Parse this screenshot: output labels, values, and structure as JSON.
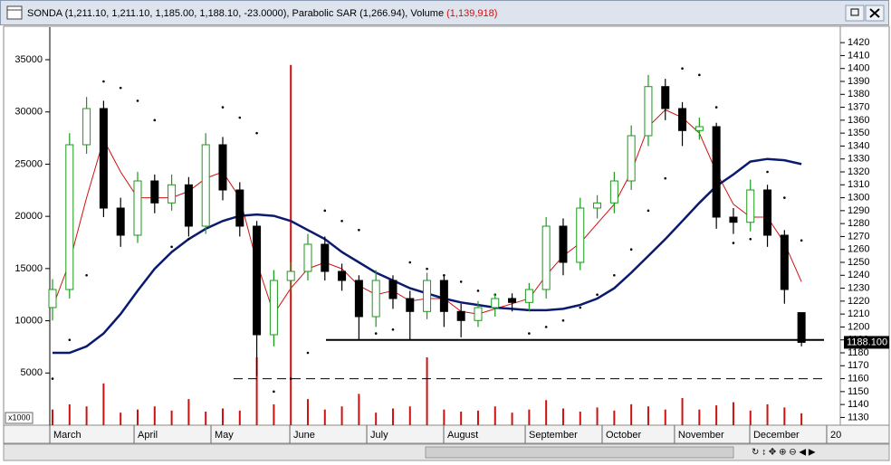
{
  "chart_data": {
    "type": "candlestick",
    "title": "SONDA (1,211.10, 1,211.10, 1,185.00, 1,188.10, -23.0000), Parabolic SAR (1,266.94), Volume",
    "title_volume": "(1,139,918)",
    "volume_unit_label": "x1000",
    "last_price_label": "1188.100",
    "xlim": [
      -0.16,
      46.28
    ],
    "xticks": [
      {
        "value": -0.16,
        "label": "March"
      },
      {
        "value": 4.79,
        "label": "April"
      },
      {
        "value": 9.31,
        "label": "May"
      },
      {
        "value": 13.94,
        "label": "June"
      },
      {
        "value": 18.46,
        "label": "July"
      },
      {
        "value": 22.98,
        "label": "August"
      },
      {
        "value": 27.77,
        "label": "September"
      },
      {
        "value": 32.29,
        "label": "October"
      },
      {
        "value": 36.54,
        "label": "November"
      },
      {
        "value": 40.96,
        "label": "December"
      },
      {
        "value": 45.48,
        "label": "20"
      }
    ],
    "ylim": [
      1124,
      1432
    ],
    "yticks": [
      1130,
      1140,
      1150,
      1160,
      1170,
      1180,
      1190,
      1200,
      1210,
      1220,
      1230,
      1240,
      1250,
      1260,
      1270,
      1280,
      1290,
      1300,
      1310,
      1320,
      1330,
      1340,
      1350,
      1360,
      1370,
      1380,
      1390,
      1400,
      1410,
      1420
    ],
    "y2lim": [
      0,
      38120
    ],
    "y2ticks": [
      5000,
      10000,
      15000,
      20000,
      25000,
      30000,
      35000
    ],
    "up_color": "#1a9a1a",
    "down_color": "#000000",
    "open": [
      1215,
      1229,
      1341,
      1369,
      1292,
      1271,
      1313,
      1296,
      1310,
      1278,
      1341,
      1306,
      1278,
      1194,
      1236,
      1243,
      1264,
      1243,
      1236,
      1208,
      1236,
      1222,
      1212,
      1236,
      1212,
      1205,
      1215,
      1222,
      1219,
      1229,
      1278,
      1250,
      1292,
      1296,
      1313,
      1348,
      1386,
      1369,
      1352,
      1355,
      1285,
      1281,
      1306,
      1271,
      1211.1
    ],
    "high": [
      1237,
      1350,
      1378,
      1375,
      1300,
      1320,
      1318,
      1318,
      1316,
      1350,
      1347,
      1312,
      1282,
      1244,
      1250,
      1272,
      1270,
      1249,
      1240,
      1244,
      1240,
      1228,
      1242,
      1240,
      1218,
      1220,
      1226,
      1226,
      1234,
      1285,
      1284,
      1300,
      1302,
      1320,
      1356,
      1395,
      1392,
      1374,
      1362,
      1358,
      1292,
      1314,
      1310,
      1275,
      1211.1
    ],
    "low": [
      1205,
      1222,
      1334,
      1285,
      1262,
      1265,
      1288,
      1290,
      1270,
      1272,
      1298,
      1270,
      1162,
      1185,
      1228,
      1236,
      1236,
      1228,
      1190,
      1200,
      1214,
      1190,
      1206,
      1200,
      1192,
      1200,
      1208,
      1212,
      1212,
      1222,
      1240,
      1244,
      1284,
      1288,
      1306,
      1340,
      1360,
      1340,
      1345,
      1276,
      1272,
      1274,
      1262,
      1218,
      1185
    ],
    "close": [
      1229,
      1341,
      1369,
      1292,
      1271,
      1313,
      1296,
      1310,
      1278,
      1341,
      1306,
      1278,
      1194,
      1236,
      1243,
      1264,
      1243,
      1236,
      1208,
      1236,
      1222,
      1212,
      1236,
      1212,
      1205,
      1215,
      1222,
      1219,
      1229,
      1278,
      1250,
      1292,
      1296,
      1313,
      1348,
      1386,
      1369,
      1352,
      1355,
      1285,
      1281,
      1306,
      1271,
      1229,
      1188.1
    ],
    "series": [
      {
        "color": "#d01010",
        "width": 1,
        "values": [
          1215,
          1250,
          1300,
          1345,
          1320,
          1300,
          1300,
          1300,
          1305,
          1315,
          1320,
          1300,
          1250,
          1210,
          1230,
          1245,
          1250,
          1245,
          1232,
          1225,
          1228,
          1220,
          1222,
          1222,
          1212,
          1210,
          1214,
          1218,
          1222,
          1240,
          1255,
          1265,
          1280,
          1295,
          1320,
          1355,
          1368,
          1362,
          1350,
          1320,
          1295,
          1285,
          1285,
          1265,
          1235
        ]
      },
      {
        "color": "#0a1a6e",
        "width": 2.5,
        "values": [
          1180,
          1180,
          1185,
          1195,
          1210,
          1228,
          1245,
          1258,
          1268,
          1276,
          1282,
          1286,
          1287,
          1286,
          1282,
          1275,
          1268,
          1258,
          1250,
          1242,
          1236,
          1230,
          1226,
          1222,
          1219,
          1217,
          1215,
          1214,
          1213,
          1213,
          1214,
          1217,
          1222,
          1230,
          1242,
          1255,
          1268,
          1282,
          1296,
          1309,
          1318,
          1328,
          1330,
          1329,
          1326
        ]
      }
    ],
    "sar": [
      1160,
      1190,
      1240,
      1390,
      1385,
      1375,
      1360,
      1262,
      1268,
      1280,
      1370,
      1362,
      1350,
      1150,
      1160,
      1180,
      1290,
      1282,
      1275,
      1195,
      1198,
      1250,
      1245,
      1240,
      1235,
      1228,
      1225,
      1222,
      1195,
      1200,
      1205,
      1215,
      1225,
      1240,
      1260,
      1290,
      1315,
      1400,
      1395,
      1370,
      1265,
      1268,
      1320,
      1300,
      1266.94
    ],
    "volume": [
      1500,
      2000,
      1800,
      4000,
      1200,
      1500,
      1800,
      1400,
      2500,
      1300,
      1600,
      1400,
      6500,
      2000,
      34500,
      2500,
      1500,
      1800,
      3000,
      1200,
      1600,
      1800,
      6500,
      1500,
      1300,
      1400,
      1800,
      1200,
      1500,
      2400,
      1600,
      1300,
      1700,
      1400,
      2000,
      1800,
      1500,
      2600,
      1500,
      1900,
      2200,
      1400,
      2000,
      1700,
      1139.918
    ],
    "volume_color": "#d01010",
    "hlines": [
      {
        "value": 1190,
        "style": "solid"
      },
      {
        "value": 1160,
        "style": "dashed"
      }
    ]
  }
}
